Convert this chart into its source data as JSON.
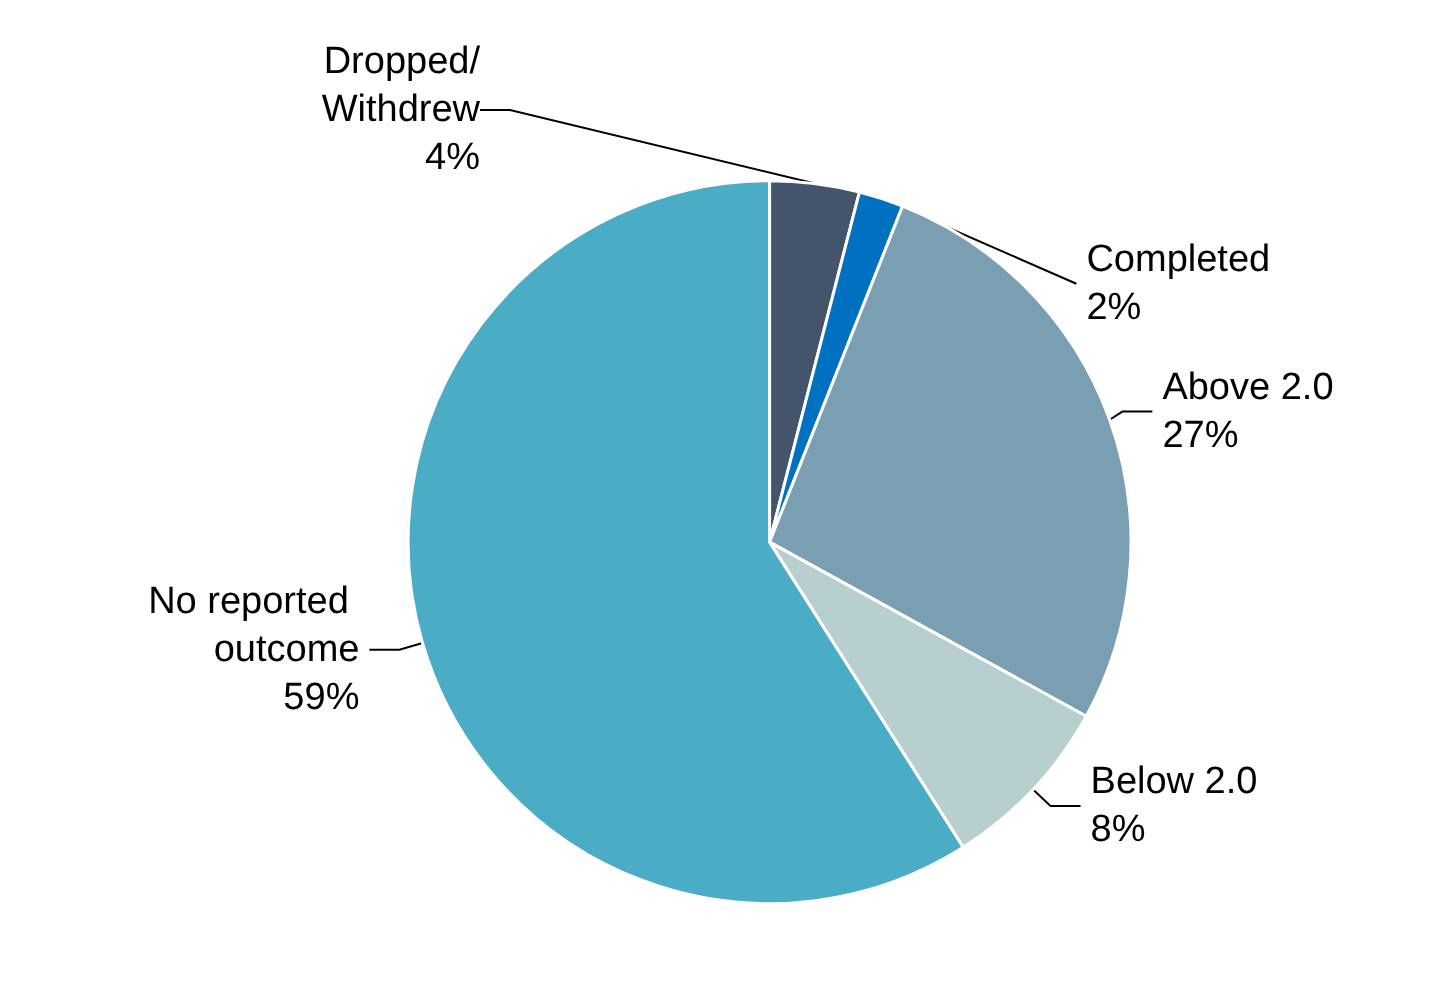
{
  "chart_data": {
    "type": "pie",
    "categories": [
      "Dropped/Withdrew",
      "Completed",
      "Above 2.0",
      "Below 2.0",
      "No reported outcome"
    ],
    "values": [
      4,
      2,
      27,
      8,
      59
    ],
    "colors": [
      "#44546a",
      "#0070c0",
      "#7a9fb3",
      "#b8cfd0",
      "#4bacc6"
    ],
    "value_labels": [
      "4%",
      "2%",
      "27%",
      "8%",
      "59%"
    ],
    "legend": false
  }
}
